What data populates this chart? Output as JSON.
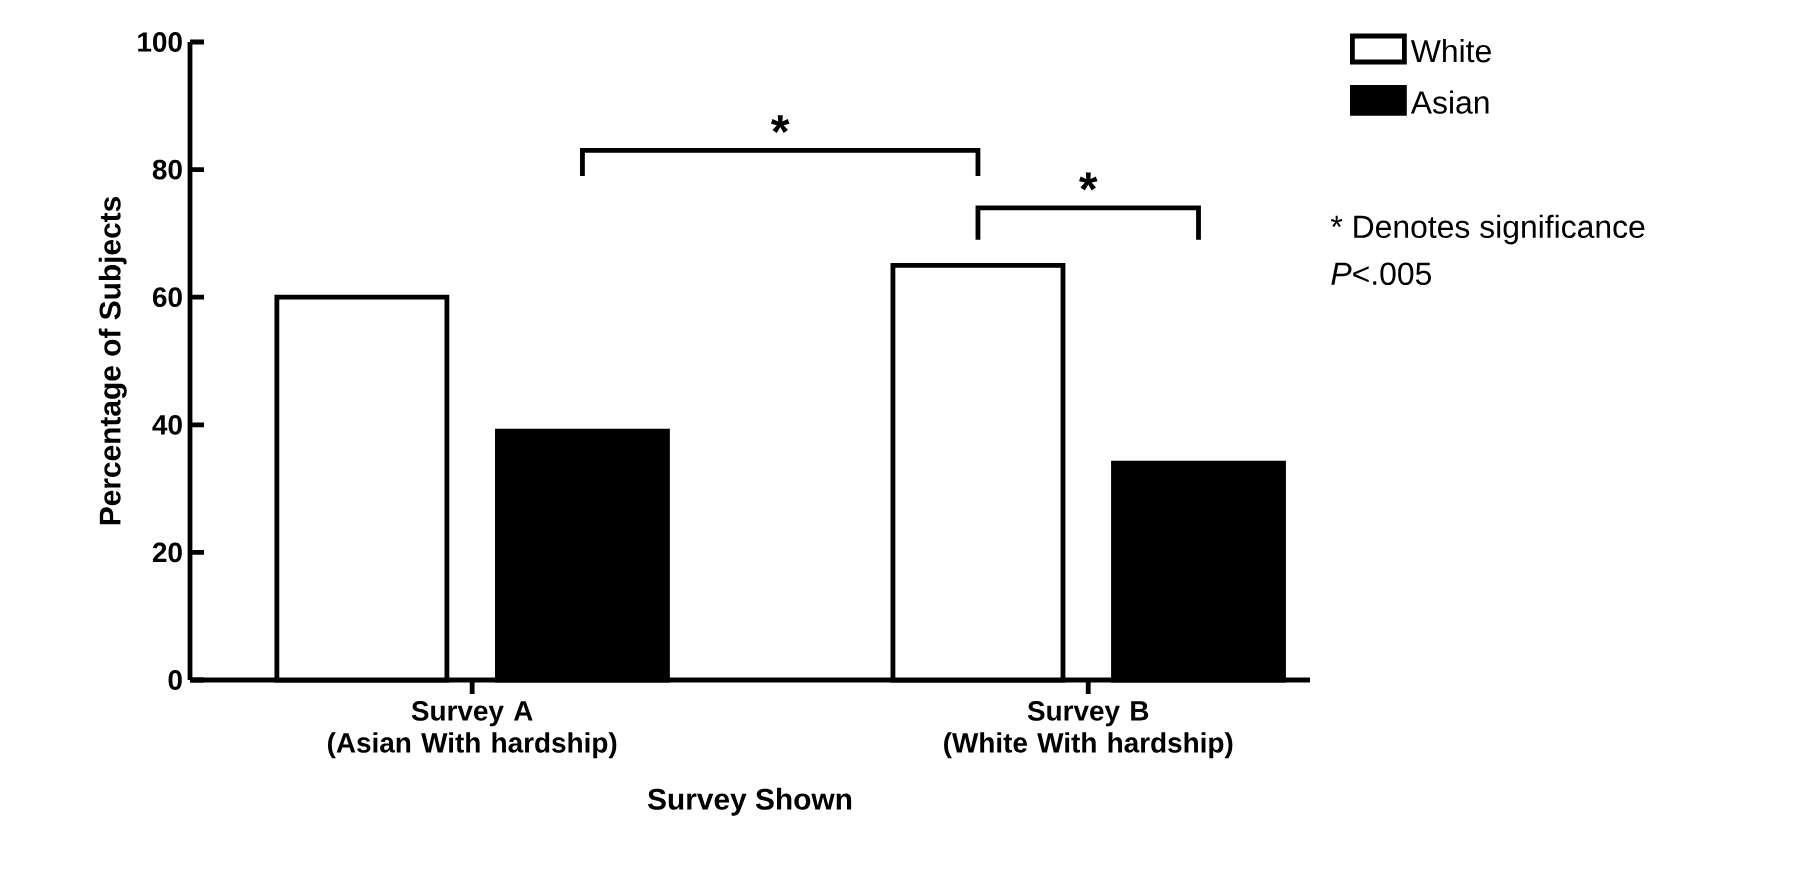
{
  "chart_data": {
    "type": "bar",
    "xlabel": "Survey Shown",
    "ylabel": "Percentage of Subjects",
    "categories": [
      "Survey A\n(Asian With hardship)",
      "Survey B\n(White With hardship)"
    ],
    "series": [
      {
        "name": "White",
        "color": "#ffffff",
        "values": [
          60,
          65
        ]
      },
      {
        "name": "Asian",
        "color": "#000000",
        "values": [
          39,
          34
        ]
      }
    ],
    "ylim": [
      0,
      100
    ],
    "yticks": [
      0,
      20,
      40,
      60,
      80,
      100
    ],
    "legend": "top right",
    "grid": false,
    "annotations": [
      "*",
      "*",
      "* Denotes significance",
      "*P*<.005"
    ]
  }
}
